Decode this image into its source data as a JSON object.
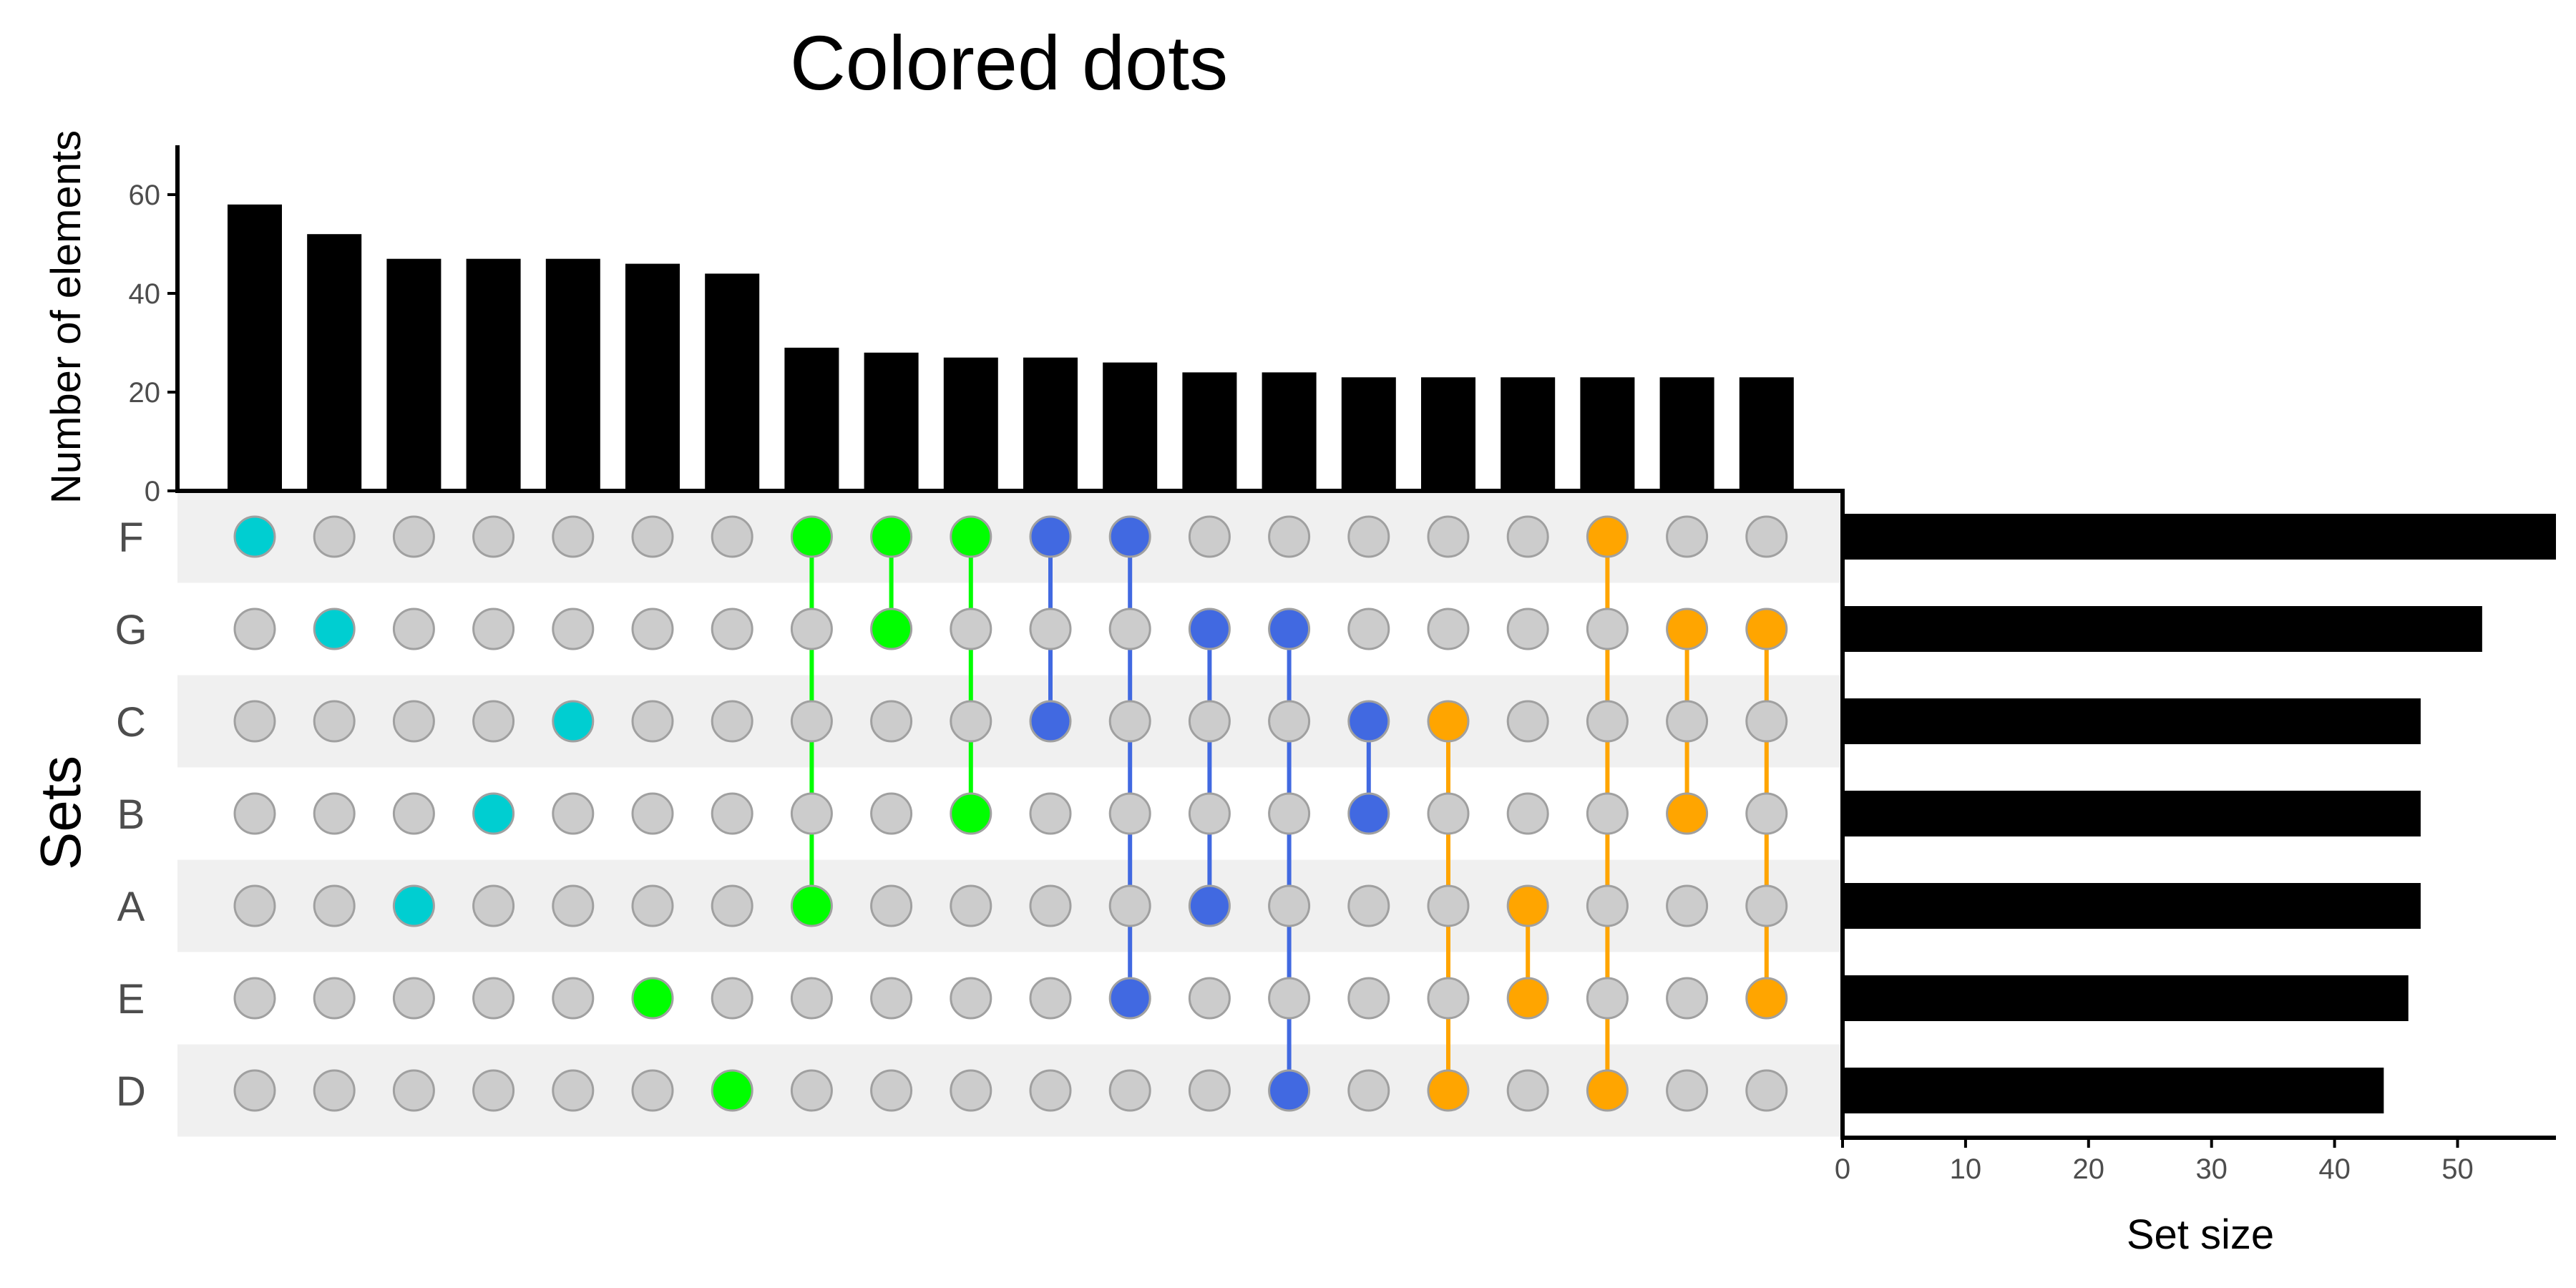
{
  "chart_data": {
    "type": "upset",
    "title": "Colored dots",
    "intersection_axis": {
      "label": "Number of elements",
      "ticks": [
        0,
        20,
        40,
        60
      ],
      "ylim": [
        0,
        70
      ]
    },
    "set_size_axis": {
      "label": "Set size",
      "ticks": [
        0,
        10,
        20,
        30,
        40,
        50
      ],
      "xlim": [
        0,
        58
      ]
    },
    "sets_label": "Sets",
    "sets": [
      {
        "name": "F",
        "size": 58
      },
      {
        "name": "G",
        "size": 52
      },
      {
        "name": "C",
        "size": 47
      },
      {
        "name": "B",
        "size": 47
      },
      {
        "name": "A",
        "size": 47
      },
      {
        "name": "E",
        "size": 46
      },
      {
        "name": "D",
        "size": 44
      }
    ],
    "intersections": [
      {
        "sets": [
          "F"
        ],
        "value": 58,
        "color": "#00CED1"
      },
      {
        "sets": [
          "G"
        ],
        "value": 52,
        "color": "#00CED1"
      },
      {
        "sets": [
          "A"
        ],
        "value": 47,
        "color": "#00CED1"
      },
      {
        "sets": [
          "B"
        ],
        "value": 47,
        "color": "#00CED1"
      },
      {
        "sets": [
          "C"
        ],
        "value": 47,
        "color": "#00CED1"
      },
      {
        "sets": [
          "E"
        ],
        "value": 46,
        "color": "#00FF00"
      },
      {
        "sets": [
          "D"
        ],
        "value": 44,
        "color": "#00FF00"
      },
      {
        "sets": [
          "F",
          "A"
        ],
        "value": 29,
        "color": "#00FF00"
      },
      {
        "sets": [
          "F",
          "G"
        ],
        "value": 28,
        "color": "#00FF00"
      },
      {
        "sets": [
          "F",
          "B"
        ],
        "value": 27,
        "color": "#00FF00"
      },
      {
        "sets": [
          "F",
          "C"
        ],
        "value": 27,
        "color": "#4169E1"
      },
      {
        "sets": [
          "F",
          "E"
        ],
        "value": 26,
        "color": "#4169E1"
      },
      {
        "sets": [
          "G",
          "A"
        ],
        "value": 24,
        "color": "#4169E1"
      },
      {
        "sets": [
          "G",
          "D"
        ],
        "value": 24,
        "color": "#4169E1"
      },
      {
        "sets": [
          "C",
          "B"
        ],
        "value": 23,
        "color": "#4169E1"
      },
      {
        "sets": [
          "C",
          "D"
        ],
        "value": 23,
        "color": "#FFA500"
      },
      {
        "sets": [
          "A",
          "E"
        ],
        "value": 23,
        "color": "#FFA500"
      },
      {
        "sets": [
          "F",
          "D"
        ],
        "value": 23,
        "color": "#FFA500"
      },
      {
        "sets": [
          "G",
          "B"
        ],
        "value": 23,
        "color": "#FFA500"
      },
      {
        "sets": [
          "G",
          "E"
        ],
        "value": 23,
        "color": "#FFA500"
      }
    ],
    "bar_color": "#000000",
    "empty_dot_color": "#CCCCCC",
    "stripe_color": "#F0F0F0"
  }
}
